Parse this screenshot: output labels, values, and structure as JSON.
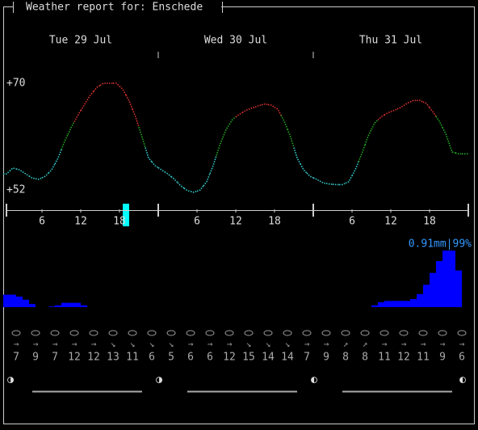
{
  "title": "Weather report for: Enschede",
  "days": [
    "Tue 29 Jul",
    "Wed 30 Jul",
    "Thu 31 Jul"
  ],
  "hours": [
    "6",
    "12",
    "18"
  ],
  "temperature": {
    "ylim": [
      52,
      70
    ],
    "yticks": [
      {
        "value": 70,
        "label": "+70"
      },
      {
        "value": 52,
        "label": "+52"
      }
    ],
    "colors": {
      "low": "#33cccc",
      "mid": "#22aa22",
      "high": "#dd3333"
    },
    "values": [
      54.7,
      55.7,
      55.4,
      54.7,
      54.0,
      53.8,
      54.3,
      55.4,
      57.4,
      60.2,
      62.5,
      64.5,
      66.3,
      68.0,
      69.3,
      70.0,
      70.0,
      70.0,
      69.0,
      67.0,
      64.3,
      60.9,
      57.4,
      56.1,
      55.4,
      54.7,
      53.8,
      52.7,
      51.9,
      51.6,
      52.0,
      53.4,
      56.1,
      59.5,
      62.2,
      63.9,
      64.7,
      65.4,
      65.8,
      66.2,
      66.5,
      66.3,
      65.6,
      63.6,
      60.9,
      57.4,
      55.4,
      54.3,
      53.8,
      53.2,
      53.0,
      52.9,
      52.9,
      53.4,
      55.4,
      58.1,
      61.1,
      63.3,
      64.3,
      65.0,
      65.4,
      65.9,
      66.6,
      67.1,
      67.1,
      66.6,
      65.2,
      63.6,
      61.5,
      58.4,
      58.1,
      58.1
    ]
  },
  "precipitation": {
    "label": "0.91mm|99%",
    "color": "#0000ff",
    "label_color": "#3399ff",
    "ylim": [
      0,
      0.91
    ],
    "values": [
      0.2,
      0.2,
      0.17,
      0.12,
      0.05,
      0,
      0,
      0.01,
      0.03,
      0.07,
      0.07,
      0.07,
      0.03,
      0,
      0,
      0,
      0,
      0,
      0,
      0,
      0,
      0,
      0,
      0,
      0,
      0,
      0,
      0,
      0,
      0,
      0,
      0,
      0,
      0,
      0,
      0,
      0,
      0,
      0,
      0,
      0,
      0,
      0,
      0,
      0,
      0,
      0,
      0,
      0,
      0,
      0,
      0,
      0,
      0,
      0,
      0,
      0,
      0.03,
      0.08,
      0.1,
      0.1,
      0.1,
      0.1,
      0.13,
      0.21,
      0.36,
      0.55,
      0.74,
      0.91,
      0.91,
      0.59,
      0
    ]
  },
  "wind_directions": [
    "→",
    "→",
    "→",
    "→",
    "→",
    "↘",
    "↘",
    "↘",
    "↘",
    "→",
    "→",
    "→",
    "↘",
    "↘",
    "↘",
    "→",
    "→",
    "↗",
    "↗",
    "→",
    "→",
    "→",
    "→",
    "→"
  ],
  "wind_speeds": [
    7,
    9,
    7,
    12,
    12,
    13,
    11,
    6,
    5,
    6,
    6,
    12,
    15,
    14,
    14,
    7,
    9,
    8,
    8,
    11,
    12,
    11,
    9,
    6
  ],
  "moon": [
    "◑",
    "◑",
    "◐",
    "◐"
  ]
}
